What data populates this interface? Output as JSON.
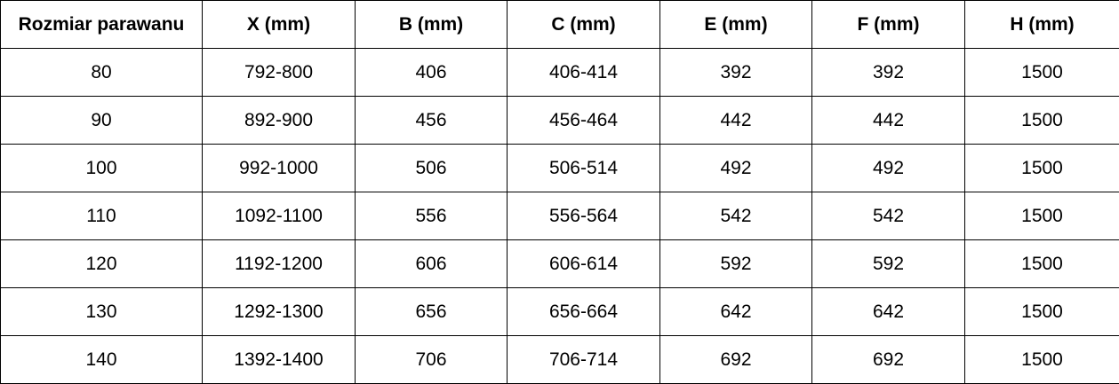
{
  "chart_data": {
    "type": "table",
    "columns": [
      "Rozmiar parawanu",
      "X (mm)",
      "B (mm)",
      "C (mm)",
      "E (mm)",
      "F (mm)",
      "H (mm)"
    ],
    "rows": [
      [
        "80",
        "792-800",
        "406",
        "406-414",
        "392",
        "392",
        "1500"
      ],
      [
        "90",
        "892-900",
        "456",
        "456-464",
        "442",
        "442",
        "1500"
      ],
      [
        "100",
        "992-1000",
        "506",
        "506-514",
        "492",
        "492",
        "1500"
      ],
      [
        "110",
        "1092-1100",
        "556",
        "556-564",
        "542",
        "542",
        "1500"
      ],
      [
        "120",
        "1192-1200",
        "606",
        "606-614",
        "592",
        "592",
        "1500"
      ],
      [
        "130",
        "1292-1300",
        "656",
        "656-664",
        "642",
        "642",
        "1500"
      ],
      [
        "140",
        "1392-1400",
        "706",
        "706-714",
        "692",
        "692",
        "1500"
      ]
    ]
  }
}
